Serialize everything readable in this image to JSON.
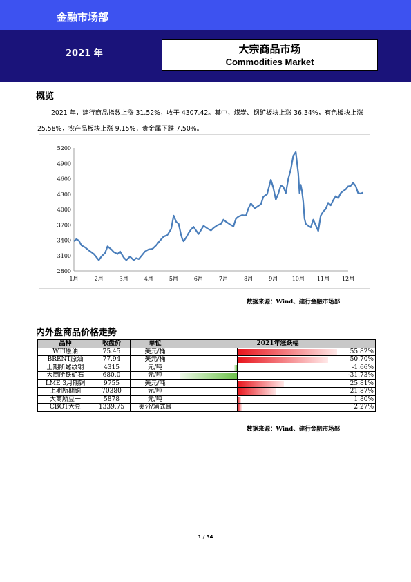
{
  "header": {
    "department": "金融市场部",
    "year": "2021 年",
    "title_cn": "大宗商品市场",
    "title_en": "Commodities Market"
  },
  "overview": {
    "heading": "概览",
    "paragraph": "2021 年，建行商品指数上涨 31.52%，收于 4307.42。其中，煤炭、钢矿板块上涨 36.34%，有色板块上涨 25.58%，农产品板块上涨 9.15%，贵金属下跌 7.50%。"
  },
  "chart_data": {
    "type": "line",
    "title": "",
    "xlabel": "",
    "ylabel": "",
    "ylim": [
      2800,
      5200
    ],
    "yticks": [
      "2800",
      "3100",
      "3400",
      "3700",
      "4000",
      "4300",
      "4600",
      "4900",
      "5200"
    ],
    "xticks": [
      "1月",
      "2月",
      "3月",
      "4月",
      "5月",
      "6月",
      "7月",
      "8月",
      "9月",
      "10月",
      "11月",
      "12月"
    ],
    "grid": false,
    "color": "#4a7ebb",
    "series": [
      {
        "x": [
          0.0,
          0.1,
          0.2,
          0.3,
          0.45,
          0.6,
          0.8,
          1.0,
          1.1,
          1.25,
          1.35,
          1.5,
          1.6,
          1.75,
          1.85,
          2.0,
          2.1,
          2.25,
          2.4,
          2.5,
          2.6,
          2.75,
          2.85,
          3.0,
          3.15,
          3.3,
          3.45,
          3.6,
          3.75,
          3.9,
          4.0,
          4.1,
          4.2,
          4.3,
          4.35,
          4.4,
          4.5,
          4.6,
          4.7,
          4.8,
          4.9,
          5.0,
          5.1,
          5.2,
          5.35,
          5.5,
          5.6,
          5.75,
          5.9,
          6.0,
          6.1,
          6.25,
          6.4,
          6.5,
          6.6,
          6.75,
          6.9,
          7.0,
          7.1,
          7.25,
          7.4,
          7.5,
          7.6,
          7.75,
          7.9,
          8.0,
          8.1,
          8.2,
          8.3,
          8.4,
          8.5,
          8.6,
          8.7,
          8.8,
          8.9,
          9.0,
          9.05,
          9.1,
          9.15,
          9.2,
          9.25,
          9.3,
          9.4,
          9.5,
          9.6,
          9.7,
          9.8,
          9.9,
          10.0,
          10.1,
          10.2,
          10.3,
          10.4,
          10.5,
          10.6,
          10.7,
          10.8,
          10.9,
          11.0,
          11.1,
          11.2,
          11.3,
          11.4,
          11.5,
          11.6
        ],
        "y": [
          3380,
          3420,
          3390,
          3300,
          3260,
          3200,
          3130,
          3010,
          3080,
          3150,
          3280,
          3220,
          3170,
          3130,
          3180,
          3060,
          3010,
          3080,
          3010,
          3050,
          3030,
          3120,
          3180,
          3220,
          3230,
          3300,
          3390,
          3470,
          3500,
          3620,
          3880,
          3760,
          3720,
          3500,
          3420,
          3380,
          3450,
          3540,
          3610,
          3660,
          3590,
          3520,
          3600,
          3680,
          3630,
          3590,
          3640,
          3690,
          3720,
          3800,
          3760,
          3710,
          3670,
          3820,
          3860,
          3890,
          3880,
          4020,
          4120,
          4020,
          4070,
          4100,
          4250,
          4300,
          4580,
          4420,
          4190,
          4310,
          4470,
          4440,
          4320,
          4600,
          4780,
          5050,
          5120,
          4700,
          4320,
          4480,
          4350,
          4150,
          3820,
          3720,
          3680,
          3650,
          3800,
          3690,
          3580,
          3880,
          3960,
          4010,
          4130,
          4080,
          4180,
          4260,
          4220,
          4320,
          4360,
          4390,
          4450,
          4460,
          4520,
          4460,
          4320,
          4310,
          4330
        ]
      }
    ]
  },
  "chart_source": "数据来源：Wind、建行金融市场部",
  "table": {
    "heading": "内外盘商品价格走势",
    "columns": [
      "品种",
      "收盘价",
      "单位",
      "2021年涨跌幅"
    ],
    "rows": [
      {
        "name": "WTI原油",
        "close": "75.45",
        "unit": "美元/桶",
        "change": "55.82%",
        "value": 55.82
      },
      {
        "name": "BRENT原油",
        "close": "77.94",
        "unit": "美元/桶",
        "change": "50.70%",
        "value": 50.7
      },
      {
        "name": "上期所螺纹钢",
        "close": "4315",
        "unit": "元/吨",
        "change": "-1.66%",
        "value": -1.66
      },
      {
        "name": "大商所铁矿石",
        "close": "680.0",
        "unit": "元/吨",
        "change": "-31.73%",
        "value": -31.73
      },
      {
        "name": "LME 3月期铜",
        "close": "9755",
        "unit": "美元/吨",
        "change": "25.81%",
        "value": 25.81
      },
      {
        "name": "上期所期铜",
        "close": "70380",
        "unit": "元/吨",
        "change": "21.87%",
        "value": 21.87
      },
      {
        "name": "大商所豆一",
        "close": "5878",
        "unit": "元/吨",
        "change": "1.80%",
        "value": 1.8
      },
      {
        "name": "CBOT大豆",
        "close": "1339.75",
        "unit": "美分/蒲式耳",
        "change": "2.27%",
        "value": 2.27
      }
    ],
    "positive_color": "#e8141c",
    "negative_color": "#6cc24a"
  },
  "table_source": "数据来源：Wind、建行金融市场部",
  "page_number": "1 / 34"
}
